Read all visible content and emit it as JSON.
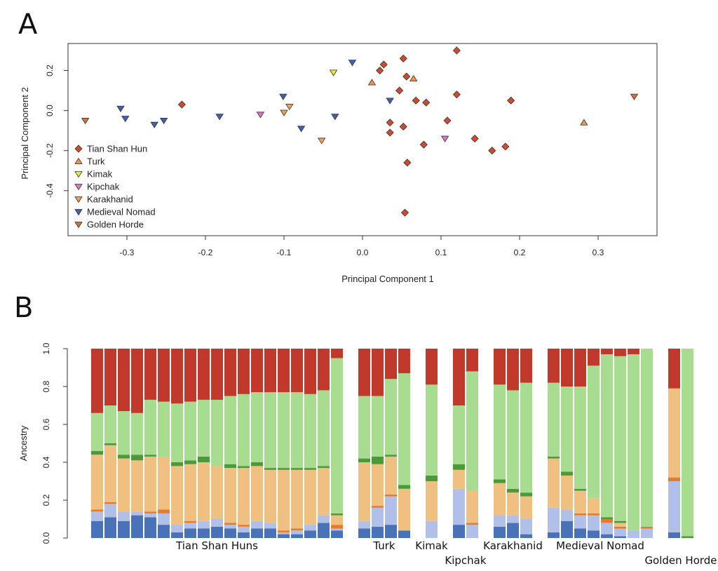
{
  "panels": {
    "a": "A",
    "b": "B"
  },
  "chart_data": [
    {
      "type": "scatter",
      "xlabel": "Principal Component 1",
      "ylabel": "Principal Component 2",
      "xlim": [
        -0.375,
        0.375
      ],
      "ylim": [
        -0.625,
        0.335
      ],
      "xticks": [
        "-0.3",
        "-0.2",
        "-0.1",
        "0.0",
        "0.1",
        "0.2",
        "0.3"
      ],
      "xtick_values": [
        -0.3,
        -0.2,
        -0.1,
        0.0,
        0.1,
        0.2,
        0.3
      ],
      "yticks": [
        "-0.4",
        "-0.2",
        "0.0",
        "0.2"
      ],
      "ytick_values": [
        -0.4,
        -0.2,
        0.0,
        0.2
      ],
      "grid": false,
      "legend_position": "left",
      "series": [
        {
          "name": "Tian Shan Hun",
          "marker": "diamond",
          "color": "#d04a2e",
          "points": [
            [
              -0.23,
              0.03
            ],
            [
              0.022,
              0.2
            ],
            [
              0.027,
              0.23
            ],
            [
              0.052,
              0.26
            ],
            [
              0.056,
              0.17
            ],
            [
              0.047,
              0.1
            ],
            [
              0.12,
              0.3
            ],
            [
              0.12,
              0.08
            ],
            [
              0.068,
              0.05
            ],
            [
              0.081,
              0.04
            ],
            [
              0.189,
              0.05
            ],
            [
              0.035,
              -0.06
            ],
            [
              0.052,
              -0.08
            ],
            [
              0.035,
              -0.11
            ],
            [
              0.108,
              -0.05
            ],
            [
              0.143,
              -0.14
            ],
            [
              0.078,
              -0.17
            ],
            [
              0.182,
              -0.18
            ],
            [
              0.165,
              -0.2
            ],
            [
              0.057,
              -0.26
            ],
            [
              0.054,
              -0.51
            ]
          ]
        },
        {
          "name": "Turk",
          "marker": "triangle-up",
          "color": "#f0924a",
          "points": [
            [
              0.012,
              0.14
            ],
            [
              0.065,
              0.16
            ],
            [
              0.282,
              -0.06
            ]
          ]
        },
        {
          "name": "Kimak",
          "marker": "triangle-down",
          "color": "#ecec3c",
          "points": [
            [
              -0.037,
              0.19
            ]
          ]
        },
        {
          "name": "Kipchak",
          "marker": "triangle-down",
          "color": "#e075c6",
          "points": [
            [
              -0.13,
              -0.02
            ],
            [
              0.105,
              -0.14
            ]
          ]
        },
        {
          "name": "Karakhanid",
          "marker": "triangle-down",
          "color": "#f0a050",
          "points": [
            [
              -0.093,
              0.02
            ],
            [
              -0.1,
              -0.01
            ],
            [
              -0.052,
              -0.15
            ]
          ]
        },
        {
          "name": "Medieval Nomad",
          "marker": "triangle-down",
          "color": "#3f5fb8",
          "points": [
            [
              -0.308,
              0.01
            ],
            [
              -0.302,
              -0.04
            ],
            [
              -0.265,
              -0.07
            ],
            [
              -0.253,
              -0.05
            ],
            [
              -0.182,
              -0.03
            ],
            [
              -0.101,
              0.07
            ],
            [
              -0.078,
              -0.09
            ],
            [
              -0.035,
              -0.03
            ],
            [
              -0.013,
              0.24
            ],
            [
              0.035,
              0.05
            ]
          ]
        },
        {
          "name": "Golden Horde",
          "marker": "triangle-down",
          "color": "#d9703c",
          "points": [
            [
              -0.353,
              -0.05
            ],
            [
              0.346,
              0.07
            ]
          ]
        }
      ]
    },
    {
      "type": "bar",
      "stacked": true,
      "ylabel": "Ancestry",
      "ylim": [
        0,
        1
      ],
      "yticks": [
        "0.0",
        "0.2",
        "0.4",
        "0.6",
        "0.8",
        "1.0"
      ],
      "ytick_values": [
        0,
        0.2,
        0.4,
        0.6,
        0.8,
        1.0
      ],
      "component_colors": [
        "#4a72b8",
        "#b0c0e8",
        "#e87a2a",
        "#f0c080",
        "#4a9a3a",
        "#a8dc90",
        "#c0392b"
      ],
      "groups": [
        {
          "name": "Tian Shan Huns",
          "label_row": 1,
          "samples": [
            [
              0.09,
              0.05,
              0.01,
              0.29,
              0.02,
              0.2,
              0.34
            ],
            [
              0.11,
              0.07,
              0.01,
              0.3,
              0.01,
              0.2,
              0.3
            ],
            [
              0.09,
              0.05,
              0.0,
              0.28,
              0.02,
              0.23,
              0.33
            ],
            [
              0.12,
              0.02,
              0.0,
              0.27,
              0.03,
              0.22,
              0.34
            ],
            [
              0.11,
              0.02,
              0.01,
              0.29,
              0.01,
              0.29,
              0.27
            ],
            [
              0.07,
              0.06,
              0.02,
              0.28,
              0.0,
              0.29,
              0.28
            ],
            [
              0.03,
              0.04,
              0.0,
              0.31,
              0.02,
              0.31,
              0.29
            ],
            [
              0.05,
              0.03,
              0.01,
              0.3,
              0.02,
              0.31,
              0.28
            ],
            [
              0.05,
              0.04,
              0.0,
              0.31,
              0.03,
              0.3,
              0.27
            ],
            [
              0.06,
              0.04,
              0.0,
              0.28,
              0.0,
              0.35,
              0.27
            ],
            [
              0.05,
              0.02,
              0.01,
              0.29,
              0.02,
              0.36,
              0.25
            ],
            [
              0.03,
              0.03,
              0.01,
              0.3,
              0.01,
              0.38,
              0.24
            ],
            [
              0.05,
              0.04,
              0.0,
              0.29,
              0.02,
              0.37,
              0.23
            ],
            [
              0.05,
              0.03,
              0.0,
              0.28,
              0.01,
              0.4,
              0.23
            ],
            [
              0.02,
              0.01,
              0.01,
              0.32,
              0.01,
              0.4,
              0.23
            ],
            [
              0.02,
              0.02,
              0.01,
              0.31,
              0.01,
              0.4,
              0.23
            ],
            [
              0.04,
              0.03,
              0.0,
              0.29,
              0.01,
              0.39,
              0.24
            ],
            [
              0.08,
              0.04,
              0.0,
              0.25,
              0.01,
              0.4,
              0.22
            ],
            [
              0.04,
              0.01,
              0.02,
              0.05,
              0.01,
              0.82,
              0.05
            ]
          ]
        },
        {
          "name": "Turk",
          "label_row": 1,
          "samples": [
            [
              0.05,
              0.04,
              0.0,
              0.31,
              0.02,
              0.33,
              0.25
            ],
            [
              0.06,
              0.1,
              0.01,
              0.22,
              0.04,
              0.32,
              0.25
            ],
            [
              0.07,
              0.15,
              0.01,
              0.2,
              0.01,
              0.4,
              0.16
            ],
            [
              0.04,
              0.0,
              0.0,
              0.22,
              0.02,
              0.59,
              0.13
            ]
          ]
        },
        {
          "name": "Kimak",
          "label_row": 1,
          "samples": [
            [
              0.0,
              0.09,
              0.0,
              0.21,
              0.03,
              0.48,
              0.19
            ]
          ]
        },
        {
          "name": "Kipchak",
          "label_row": 2,
          "samples": [
            [
              0.07,
              0.19,
              0.0,
              0.1,
              0.03,
              0.31,
              0.3
            ],
            [
              0.0,
              0.07,
              0.01,
              0.17,
              0.0,
              0.63,
              0.12
            ]
          ]
        },
        {
          "name": "Karakhanid",
          "label_row": 1,
          "samples": [
            [
              0.06,
              0.06,
              0.0,
              0.17,
              0.02,
              0.5,
              0.19
            ],
            [
              0.08,
              0.04,
              0.0,
              0.12,
              0.02,
              0.52,
              0.22
            ],
            [
              0.02,
              0.08,
              0.0,
              0.12,
              0.02,
              0.58,
              0.18
            ]
          ]
        },
        {
          "name": "Medieval Nomad",
          "label_row": 1,
          "samples": [
            [
              0.03,
              0.13,
              0.0,
              0.26,
              0.01,
              0.39,
              0.18
            ],
            [
              0.09,
              0.06,
              0.0,
              0.18,
              0.02,
              0.45,
              0.2
            ],
            [
              0.05,
              0.07,
              0.01,
              0.12,
              0.01,
              0.54,
              0.2
            ],
            [
              0.04,
              0.08,
              0.01,
              0.08,
              0.0,
              0.7,
              0.09
            ],
            [
              0.02,
              0.06,
              0.02,
              0.0,
              0.01,
              0.86,
              0.03
            ],
            [
              0.01,
              0.04,
              0.01,
              0.02,
              0.01,
              0.87,
              0.04
            ],
            [
              0.0,
              0.04,
              0.0,
              0.0,
              0.0,
              0.93,
              0.03
            ],
            [
              0.0,
              0.05,
              0.01,
              0.0,
              0.0,
              0.94,
              0.0
            ]
          ]
        },
        {
          "name": "Golden Horde",
          "label_row": 2,
          "samples": [
            [
              0.03,
              0.27,
              0.02,
              0.47,
              0.0,
              0.0,
              0.21
            ],
            [
              0.0,
              0.0,
              0.0,
              0.0,
              0.01,
              0.99,
              0.0
            ]
          ]
        }
      ]
    }
  ]
}
